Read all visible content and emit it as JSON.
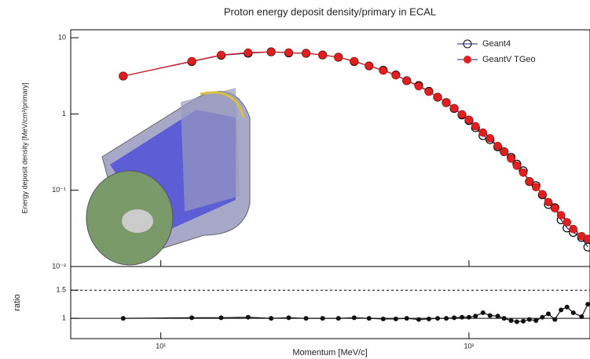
{
  "chart_data": [
    {
      "type": "line",
      "title": "Proton energy deposit density/primary in ECAL",
      "ylabel": "Energy deposit density [MeV/cm³/primary]",
      "log_x": true,
      "log_y": true,
      "legend": "upper right",
      "xlim": [
        5.1,
        247
      ],
      "ylim": [
        0.01,
        12.7
      ],
      "yticks": [
        {
          "value": 0.01,
          "label": "10⁻²"
        },
        {
          "value": 0.1,
          "label": "10⁻¹"
        },
        1,
        10
      ],
      "x": [
        7.55,
        12.6,
        15.7,
        19.2,
        22.8,
        26.0,
        29.6,
        33.5,
        37.7,
        42.4,
        47.4,
        52.7,
        57.9,
        62.8,
        68.7,
        74.1,
        79.1,
        84.4,
        89.5,
        94.9,
        100,
        105,
        111,
        117,
        124,
        130,
        137,
        143,
        150,
        157,
        165,
        173,
        181,
        190,
        199,
        208,
        218,
        232,
        243
      ],
      "series": [
        {
          "name": "Geant4",
          "color": "#1a237e",
          "marker": "open",
          "values": [
            3.14,
            4.87,
            5.88,
            6.25,
            6.53,
            6.32,
            6.24,
            5.94,
            5.55,
            4.87,
            4.27,
            3.75,
            3.25,
            2.73,
            2.36,
            1.98,
            1.66,
            1.41,
            1.18,
            0.97,
            0.82,
            0.66,
            0.52,
            0.46,
            0.37,
            0.32,
            0.27,
            0.22,
            0.18,
            0.13,
            0.115,
            0.087,
            0.065,
            0.059,
            0.041,
            0.032,
            0.028,
            0.024,
            0.018
          ]
        },
        {
          "name": "GeantV TGeo",
          "color": "#e02020",
          "marker": "filled",
          "values": [
            3.14,
            4.92,
            5.94,
            6.38,
            6.53,
            6.38,
            6.24,
            5.94,
            5.55,
            4.92,
            4.27,
            3.71,
            3.22,
            2.73,
            2.31,
            1.96,
            1.66,
            1.41,
            1.19,
            0.99,
            0.84,
            0.69,
            0.57,
            0.48,
            0.38,
            0.32,
            0.26,
            0.21,
            0.17,
            0.13,
            0.11,
            0.089,
            0.07,
            0.058,
            0.047,
            0.038,
            0.031,
            0.025,
            0.023
          ]
        }
      ]
    },
    {
      "type": "line",
      "xlabel": "Momentum [MeV/c]",
      "ylabel": "ratio",
      "color": "#111111",
      "log_x": true,
      "xlim": [
        5.1,
        247
      ],
      "ylim": [
        0.64,
        1.92
      ],
      "xticks": [
        {
          "value": 10,
          "label": "10¹"
        },
        {
          "value": 100,
          "label": "10²"
        }
      ],
      "yticks": [
        1,
        1.5
      ],
      "x": [
        7.55,
        12.6,
        15.7,
        19.2,
        22.8,
        26.0,
        29.6,
        33.5,
        37.7,
        42.4,
        47.4,
        52.7,
        57.9,
        62.8,
        68.7,
        74.1,
        79.1,
        84.4,
        89.5,
        94.9,
        100,
        105,
        111,
        117,
        124,
        130,
        137,
        143,
        150,
        157,
        165,
        173,
        181,
        190,
        199,
        208,
        218,
        232,
        243
      ],
      "values": [
        1.0,
        1.01,
        1.01,
        1.02,
        1.0,
        1.01,
        1.0,
        1.0,
        1.0,
        1.01,
        1.0,
        0.99,
        0.99,
        1.0,
        0.98,
        0.99,
        1.0,
        1.0,
        1.01,
        1.02,
        1.02,
        1.04,
        1.1,
        1.05,
        1.04,
        1.0,
        0.96,
        0.94,
        0.95,
        0.98,
        0.96,
        1.02,
        1.08,
        0.98,
        1.15,
        1.2,
        1.1,
        1.03,
        1.25
      ]
    }
  ]
}
